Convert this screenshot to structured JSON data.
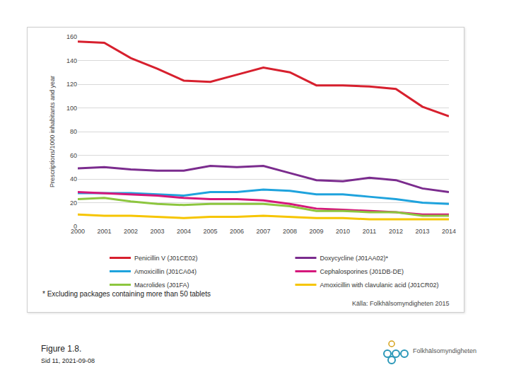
{
  "chart_data": {
    "type": "line",
    "y_label": "Prescriptions/1000 inhabitants and year",
    "categories": [
      "2000",
      "2001",
      "2002",
      "2003",
      "2004",
      "2005",
      "2006",
      "2007",
      "2008",
      "2009",
      "2010",
      "2011",
      "2012",
      "2013",
      "2014"
    ],
    "series": [
      {
        "name": "Penicillin V (J01CE02)",
        "color": "#d7202e",
        "values": [
          156,
          155,
          142,
          133,
          123,
          122,
          128,
          134,
          130,
          119,
          119,
          118,
          116,
          101,
          93
        ]
      },
      {
        "name": "Doxycycline (J01AA02)*",
        "color": "#7b2c8e",
        "values": [
          49,
          50,
          48,
          47,
          47,
          51,
          50,
          51,
          45,
          39,
          38,
          41,
          39,
          32,
          29
        ]
      },
      {
        "name": "Amoxicillin (J01CA04)",
        "color": "#1fa3dd",
        "values": [
          28,
          28,
          28,
          27,
          26,
          29,
          29,
          31,
          30,
          27,
          27,
          25,
          23,
          20,
          19
        ]
      },
      {
        "name": "Cephalosporines (J01DB-DE)",
        "color": "#d5177b",
        "values": [
          29,
          28,
          27,
          26,
          24,
          23,
          23,
          22,
          19,
          15,
          14,
          13,
          12,
          10,
          10
        ]
      },
      {
        "name": "Macrolides (J01FA)",
        "color": "#8dc63f",
        "values": [
          23,
          24,
          21,
          19,
          18,
          19,
          19,
          19,
          17,
          13,
          13,
          12,
          12,
          9,
          9
        ]
      },
      {
        "name": "Amoxicillin with clavulanic acid (J01CR02)",
        "color": "#f6c500",
        "values": [
          10,
          9,
          9,
          8,
          7,
          8,
          8,
          9,
          8,
          7,
          7,
          6,
          6,
          6,
          6
        ]
      }
    ],
    "ylim": [
      0,
      160
    ],
    "yticks": [
      0,
      20,
      40,
      60,
      80,
      100,
      120,
      140,
      160
    ],
    "grid": true,
    "legend": "bottom",
    "footnote": "* Excluding packages containing more than 50 tablets",
    "source": "Källa: Folkhälsomyndigheten 2015"
  },
  "page": {
    "figure_label": "Figure 1.8.",
    "slide_info": "Sid 11, 2021-09-08",
    "logo_text": "Folkhälsomyndigheten"
  }
}
